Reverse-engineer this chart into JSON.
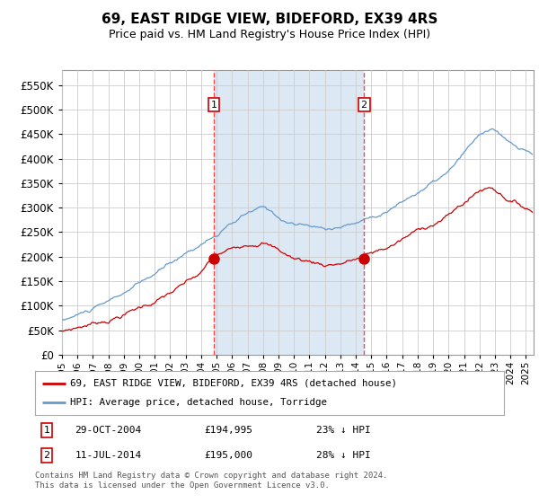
{
  "title": "69, EAST RIDGE VIEW, BIDEFORD, EX39 4RS",
  "subtitle": "Price paid vs. HM Land Registry's House Price Index (HPI)",
  "background_color": "#ffffff",
  "plot_bg": "#ffffff",
  "fill_color": "#dce9f5",
  "red_line_label": "69, EAST RIDGE VIEW, BIDEFORD, EX39 4RS (detached house)",
  "blue_line_label": "HPI: Average price, detached house, Torridge",
  "transaction1_date": "29-OCT-2004",
  "transaction1_price": "£194,995",
  "transaction1_hpi": "23% ↓ HPI",
  "transaction2_date": "11-JUL-2014",
  "transaction2_price": "£195,000",
  "transaction2_hpi": "28% ↓ HPI",
  "footer": "Contains HM Land Registry data © Crown copyright and database right 2024.\nThis data is licensed under the Open Government Licence v3.0.",
  "ylim": [
    0,
    580000
  ],
  "yticks": [
    0,
    50000,
    100000,
    150000,
    200000,
    250000,
    300000,
    350000,
    400000,
    450000,
    500000,
    550000
  ],
  "red_color": "#cc0000",
  "blue_color": "#6699cc",
  "vline_color": "#ff4444",
  "sale_year1": 2004.83,
  "sale_price1": 194995,
  "sale_year2": 2014.53,
  "sale_price2": 195000,
  "xmin": 1995,
  "xmax": 2025.5
}
